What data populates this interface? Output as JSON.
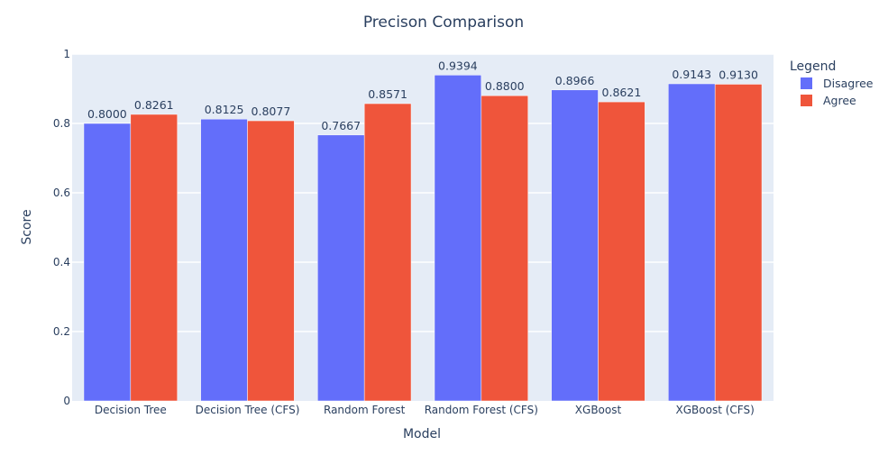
{
  "chart_data": {
    "type": "bar",
    "title": "Precison Comparison",
    "xlabel": "Model",
    "ylabel": "Score",
    "ylim": [
      0,
      1
    ],
    "yticks": [
      "0",
      "0.2",
      "0.4",
      "0.6",
      "0.8",
      "1"
    ],
    "categories": [
      "Decision Tree",
      "Decision Tree (CFS)",
      "Random Forest",
      "Random Forest (CFS)",
      "XGBoost",
      "XGBoost (CFS)"
    ],
    "series": [
      {
        "name": "Disagree",
        "color": "#636efa",
        "values": [
          0.8,
          0.8125,
          0.7667,
          0.9394,
          0.8966,
          0.9143
        ],
        "labels": [
          "0.8000",
          "0.8125",
          "0.7667",
          "0.9394",
          "0.8966",
          "0.9143"
        ]
      },
      {
        "name": "Agree",
        "color": "#ef553b",
        "values": [
          0.8261,
          0.8077,
          0.8571,
          0.88,
          0.8621,
          0.913
        ],
        "labels": [
          "0.8261",
          "0.8077",
          "0.8571",
          "0.8800",
          "0.8621",
          "0.9130"
        ]
      }
    ],
    "legend": {
      "title": "Legend",
      "position": "right"
    },
    "grid": true,
    "plot_background": "#e5ecf6"
  }
}
